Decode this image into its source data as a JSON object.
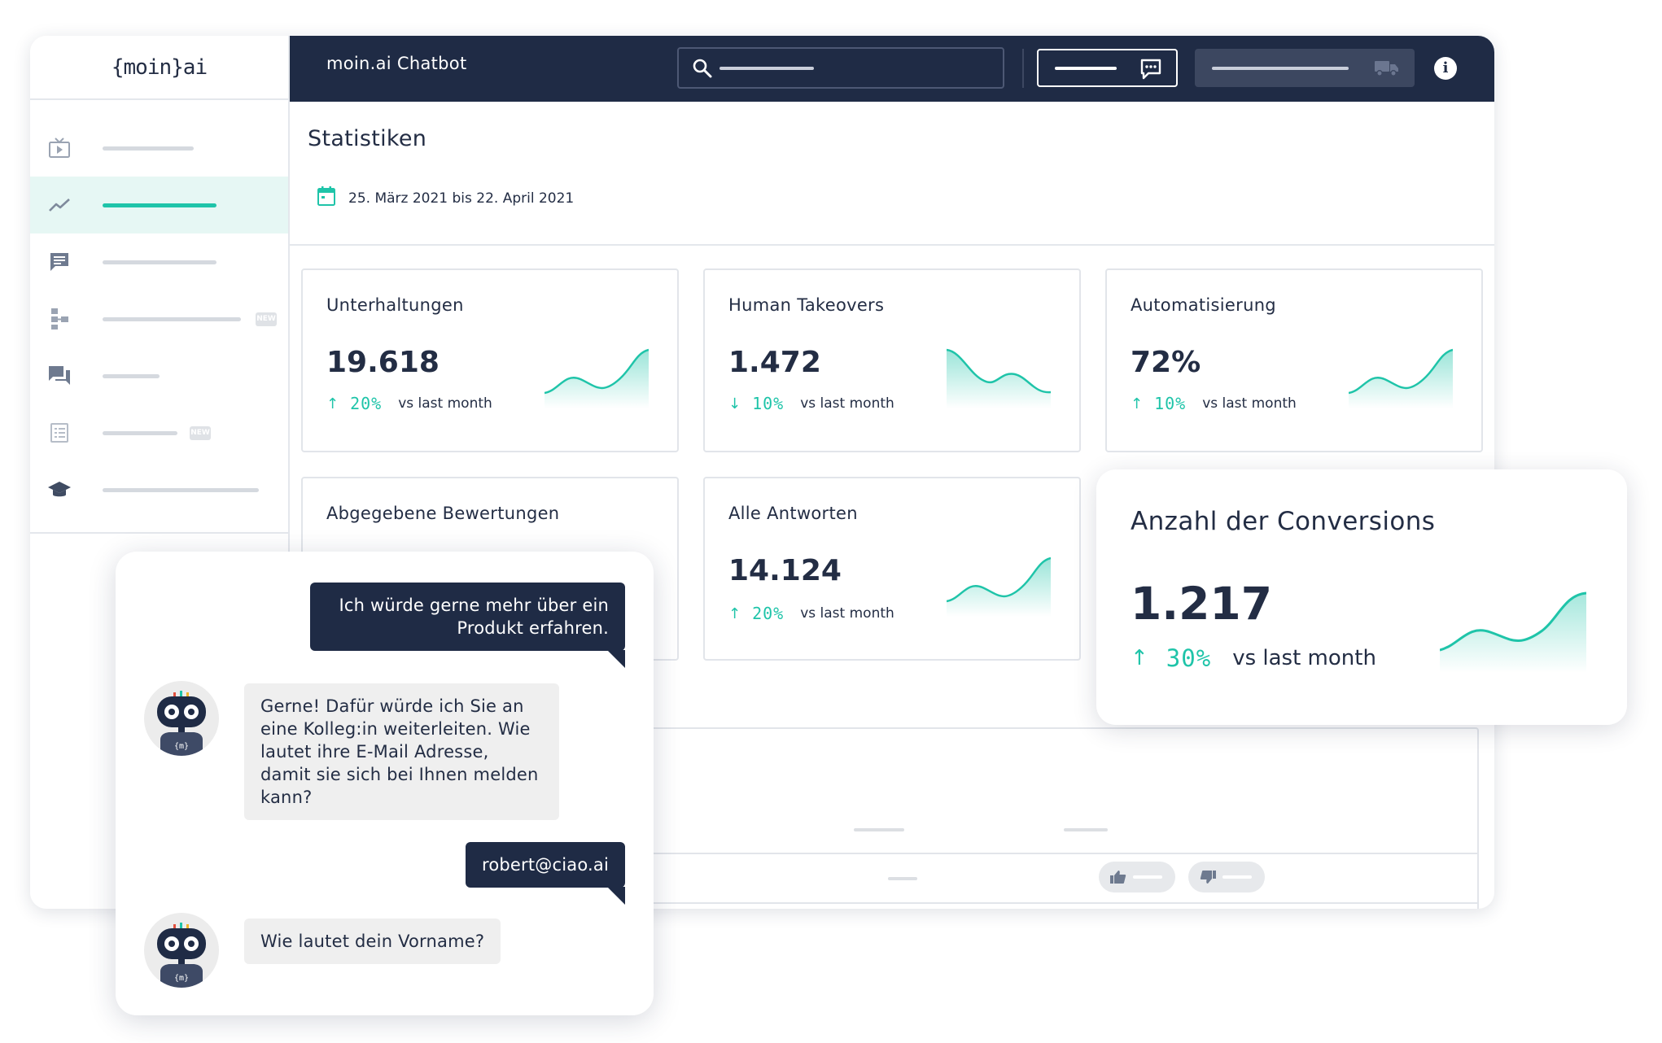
{
  "app": {
    "logo": "{moin}ai",
    "title": "moin.ai Chatbot"
  },
  "sidebar": {
    "items": [
      {
        "icon": "tv-play-icon",
        "active": false,
        "new": false
      },
      {
        "icon": "trend-line-icon",
        "active": true,
        "new": false
      },
      {
        "icon": "chat-message-icon",
        "active": false,
        "new": false
      },
      {
        "icon": "flow-tree-icon",
        "active": false,
        "new": true
      },
      {
        "icon": "forum-icon",
        "active": false,
        "new": false
      },
      {
        "icon": "list-doc-icon",
        "active": false,
        "new": true
      },
      {
        "icon": "graduation-cap-icon",
        "active": false,
        "new": false
      }
    ],
    "new_badge": "NEW"
  },
  "topbar": {
    "info_label": "i"
  },
  "page": {
    "title": "Statistiken",
    "date_range": "25. März 2021 bis 22. April 2021"
  },
  "cards": [
    {
      "title": "Unterhaltungen",
      "value": "19.618",
      "direction": "up",
      "arrow": "↑",
      "change": "20%",
      "comparison": "vs last month"
    },
    {
      "title": "Human Takeovers",
      "value": "1.472",
      "direction": "down",
      "arrow": "↓",
      "change": "10%",
      "comparison": "vs last month"
    },
    {
      "title": "Automatisierung",
      "value": "72%",
      "direction": "up",
      "arrow": "↑",
      "change": "10%",
      "comparison": "vs last month"
    },
    {
      "title": "Abgegebene Bewertungen"
    },
    {
      "title": "Alle Antworten",
      "value": "14.124",
      "direction": "up",
      "arrow": "↑",
      "change": "20%",
      "comparison": "vs last month"
    }
  ],
  "conversions": {
    "title": "Anzahl der Conversions",
    "value": "1.217",
    "arrow": "↑",
    "change": "30%",
    "comparison": "vs last month"
  },
  "chat": {
    "messages": [
      {
        "from": "user",
        "text": "Ich würde gerne mehr über ein Produkt erfahren."
      },
      {
        "from": "bot",
        "text": "Gerne! Dafür würde ich Sie an eine Kolleg:in weiterleiten. Wie lautet ihre E-Mail Adresse, damit sie sich bei Ihnen melden kann?"
      },
      {
        "from": "user",
        "text": "robert@ciao.ai"
      },
      {
        "from": "bot",
        "text": "Wie lautet dein Vorname?"
      }
    ],
    "bot_avatar_mark": "{m}"
  },
  "colors": {
    "navy": "#1f2b45",
    "accent": "#1fc4a9",
    "muted": "#d5d9df"
  }
}
